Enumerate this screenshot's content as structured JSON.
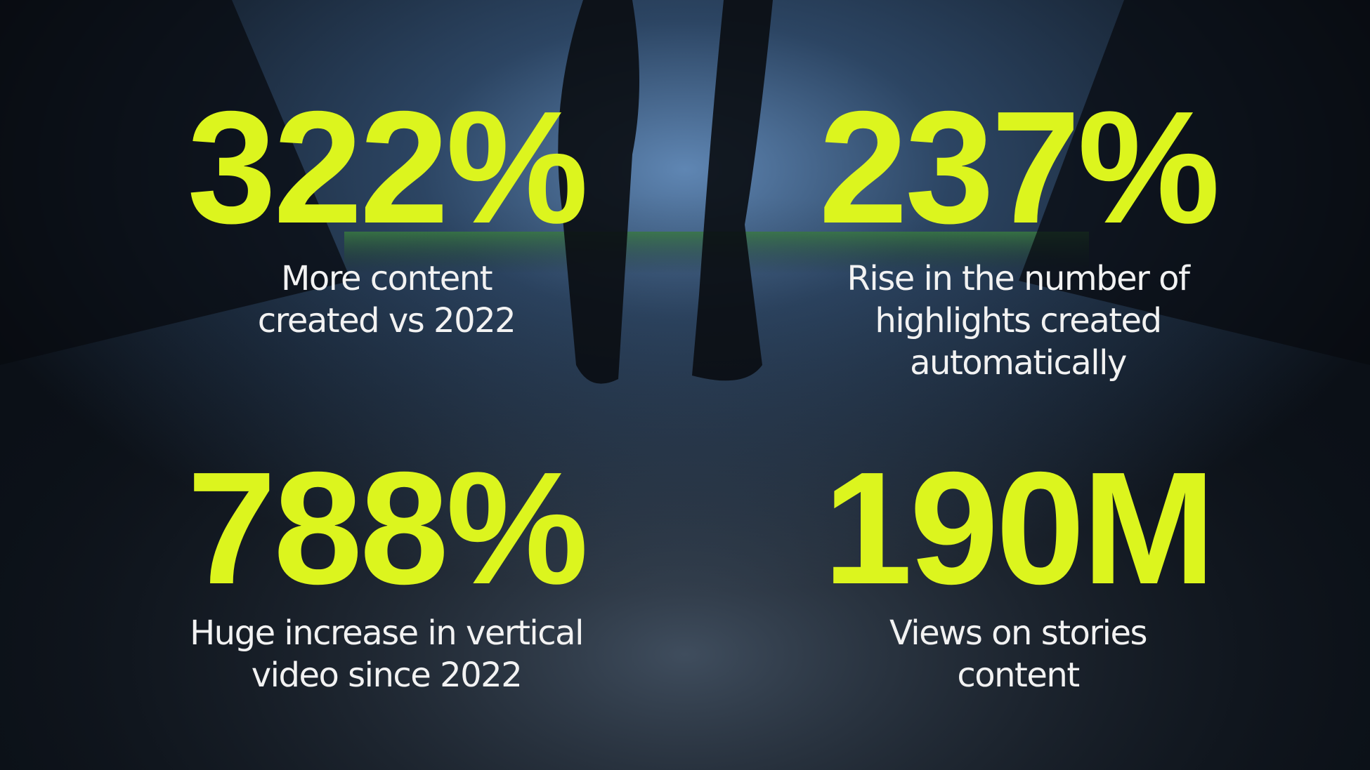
{
  "stats": [
    {
      "value": "322%",
      "description_lines": [
        "More content",
        "created vs 2022"
      ]
    },
    {
      "value": "237%",
      "description_lines": [
        "Rise in the number of",
        "highlights created",
        "automatically"
      ]
    },
    {
      "value": "788%",
      "description_lines": [
        "Huge increase in vertical",
        "video since 2022"
      ]
    },
    {
      "value": "190M",
      "description_lines": [
        "Views on stories",
        "content"
      ]
    }
  ]
}
